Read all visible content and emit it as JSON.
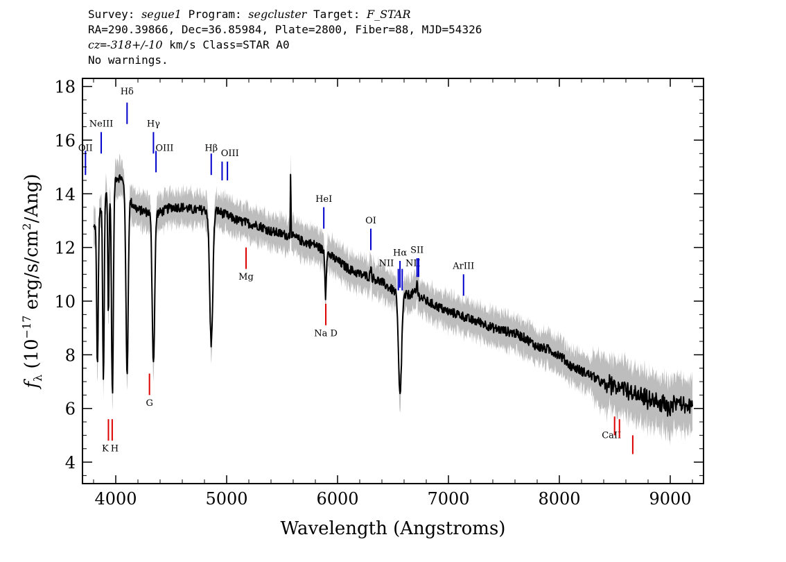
{
  "header": {
    "l1_a": "Survey: ",
    "survey": "segue1",
    "l1_b": " Program: ",
    "program": "segcluster",
    "l1_c": " Target: ",
    "target": "F_STAR",
    "l2": "RA=290.39866, Dec=36.85984, Plate=2800, Fiber=88, MJD=54326",
    "cz_label": "cz",
    "cz_a": "=",
    "cz_val": "-318+/-10",
    "cz_b": " km/s Class=STAR A0",
    "l4": "No warnings."
  },
  "chart_data": {
    "type": "line",
    "xlabel": "Wavelength (Angstroms)",
    "ylabel_parts": {
      "f": "f",
      "sub": "λ",
      "a": " (10",
      "exp": "−17",
      "b": " erg/s/cm",
      "exp2": "2",
      "c": "/Ang)"
    },
    "xlim": [
      3700,
      9300
    ],
    "ylim": [
      3.2,
      18.3
    ],
    "x_ticks": [
      4000,
      5000,
      6000,
      7000,
      8000,
      9000
    ],
    "y_ticks": [
      4,
      6,
      8,
      10,
      12,
      14,
      16,
      18
    ],
    "colors": {
      "spectrum": "#000000",
      "error": "#bdbdbd",
      "emission": "#0000cc",
      "absorption": "#dd0000"
    },
    "continuum": [
      [
        3800,
        12.7
      ],
      [
        3850,
        13.2
      ],
      [
        3900,
        14.0
      ],
      [
        3950,
        14.3
      ],
      [
        4000,
        14.6
      ],
      [
        4050,
        14.6
      ],
      [
        4100,
        14.0
      ],
      [
        4150,
        13.6
      ],
      [
        4200,
        13.4
      ],
      [
        4300,
        13.3
      ],
      [
        4400,
        13.3
      ],
      [
        4500,
        13.5
      ],
      [
        4600,
        13.5
      ],
      [
        4700,
        13.4
      ],
      [
        4800,
        13.4
      ],
      [
        4900,
        13.4
      ],
      [
        5000,
        13.2
      ],
      [
        5100,
        13.0
      ],
      [
        5200,
        12.9
      ],
      [
        5300,
        12.8
      ],
      [
        5400,
        12.6
      ],
      [
        5500,
        12.5
      ],
      [
        5600,
        12.4
      ],
      [
        5700,
        12.2
      ],
      [
        5800,
        12.1
      ],
      [
        5900,
        11.8
      ],
      [
        6000,
        11.5
      ],
      [
        6100,
        11.2
      ],
      [
        6200,
        11.0
      ],
      [
        6300,
        10.9
      ],
      [
        6400,
        10.7
      ],
      [
        6500,
        10.4
      ],
      [
        6600,
        10.2
      ],
      [
        6700,
        10.3
      ],
      [
        6800,
        10.0
      ],
      [
        6900,
        9.8
      ],
      [
        7000,
        9.6
      ],
      [
        7100,
        9.5
      ],
      [
        7200,
        9.3
      ],
      [
        7300,
        9.2
      ],
      [
        7400,
        9.0
      ],
      [
        7500,
        8.9
      ],
      [
        7600,
        8.8
      ],
      [
        7700,
        8.6
      ],
      [
        7800,
        8.3
      ],
      [
        7900,
        8.2
      ],
      [
        8000,
        8.0
      ],
      [
        8100,
        7.6
      ],
      [
        8200,
        7.4
      ],
      [
        8300,
        7.2
      ],
      [
        8400,
        6.9
      ],
      [
        8500,
        6.8
      ],
      [
        8600,
        6.7
      ],
      [
        8700,
        6.5
      ],
      [
        8800,
        6.3
      ],
      [
        8900,
        6.2
      ],
      [
        9000,
        6.0
      ],
      [
        9100,
        6.3
      ],
      [
        9200,
        6.0
      ]
    ],
    "features": [
      {
        "x": 3835,
        "depth": 5.5,
        "w": 10
      },
      {
        "x": 3889,
        "depth": 6.8,
        "w": 10
      },
      {
        "x": 3934,
        "depth": 4.8,
        "w": 8
      },
      {
        "x": 3970,
        "depth": 7.9,
        "w": 12
      },
      {
        "x": 4102,
        "depth": 6.8,
        "w": 14
      },
      {
        "x": 4340,
        "depth": 5.6,
        "w": 16
      },
      {
        "x": 4861,
        "depth": 5.0,
        "w": 20
      },
      {
        "x": 5577,
        "depth": -2.6,
        "w": 4
      },
      {
        "x": 5892,
        "depth": 1.6,
        "w": 8
      },
      {
        "x": 6300,
        "depth": -0.5,
        "w": 6
      },
      {
        "x": 6563,
        "depth": 3.8,
        "w": 20
      },
      {
        "x": 6717,
        "depth": -0.5,
        "w": 6
      }
    ],
    "emission_lines": [
      {
        "label": "OII",
        "x": 3727,
        "y1": 14.7,
        "y2": 15.6,
        "lx": 3727,
        "ly": 15.6
      },
      {
        "label": "NeIII",
        "x": 3869,
        "y1": 15.5,
        "y2": 16.3,
        "lx": 3869,
        "ly": 16.5
      },
      {
        "label": "Hδ",
        "x": 4102,
        "y1": 16.6,
        "y2": 17.4,
        "lx": 4102,
        "ly": 17.7
      },
      {
        "label": "Hγ",
        "x": 4340,
        "y1": 15.5,
        "y2": 16.3,
        "lx": 4340,
        "ly": 16.5
      },
      {
        "label": "OIII",
        "x": 4363,
        "y1": 14.8,
        "y2": 15.6,
        "lx": 4440,
        "ly": 15.6
      },
      {
        "label": "Hβ",
        "x": 4861,
        "y1": 14.7,
        "y2": 15.5,
        "lx": 4861,
        "ly": 15.6
      },
      {
        "label": "OIII",
        "x": 4959,
        "y1": 14.5,
        "y2": 15.2,
        "lx": 5030,
        "ly": 15.4
      },
      {
        "label": "OIII",
        "x": 5007,
        "y1": 14.5,
        "y2": 15.2,
        "lx": null,
        "ly": null
      },
      {
        "label": "HeI",
        "x": 5876,
        "y1": 12.7,
        "y2": 13.5,
        "lx": 5876,
        "ly": 13.7
      },
      {
        "label": "OI",
        "x": 6300,
        "y1": 11.9,
        "y2": 12.7,
        "lx": 6300,
        "ly": 12.9
      },
      {
        "label": "NII",
        "x": 6548,
        "y1": 10.4,
        "y2": 11.2,
        "lx": 6440,
        "ly": 11.3
      },
      {
        "label": "Hα",
        "x": 6563,
        "y1": 10.5,
        "y2": 11.5,
        "lx": 6563,
        "ly": 11.7
      },
      {
        "label": "NII",
        "x": 6583,
        "y1": 10.4,
        "y2": 11.2,
        "lx": 6680,
        "ly": 11.3
      },
      {
        "label": "SII",
        "x": 6717,
        "y1": 10.9,
        "y2": 11.6,
        "lx": 6717,
        "ly": 11.8
      },
      {
        "label": "SII",
        "x": 6731,
        "y1": 10.9,
        "y2": 11.6,
        "lx": null,
        "ly": null
      },
      {
        "label": "ArIII",
        "x": 7136,
        "y1": 10.2,
        "y2": 11.0,
        "lx": 7136,
        "ly": 11.2
      }
    ],
    "absorption_lines": [
      {
        "label": "K",
        "x": 3934,
        "y1": 4.8,
        "y2": 5.6,
        "lx": 3905,
        "ly": 4.4
      },
      {
        "label": "H",
        "x": 3968,
        "y1": 4.8,
        "y2": 5.6,
        "lx": 3990,
        "ly": 4.4
      },
      {
        "label": "G",
        "x": 4304,
        "y1": 6.5,
        "y2": 7.3,
        "lx": 4304,
        "ly": 6.1
      },
      {
        "label": "Mg",
        "x": 5175,
        "y1": 11.2,
        "y2": 12.0,
        "lx": 5175,
        "ly": 10.8
      },
      {
        "label": "Na D",
        "x": 5894,
        "y1": 9.1,
        "y2": 9.9,
        "lx": 5894,
        "ly": 8.7
      },
      {
        "label": "CaII",
        "x": 8498,
        "y1": 5.0,
        "y2": 5.7,
        "lx": 8470,
        "ly": 4.9
      },
      {
        "label": "",
        "x": 8542,
        "y1": 4.9,
        "y2": 5.6,
        "lx": null,
        "ly": null
      },
      {
        "label": "",
        "x": 8662,
        "y1": 4.3,
        "y2": 5.0,
        "lx": null,
        "ly": null
      }
    ]
  }
}
